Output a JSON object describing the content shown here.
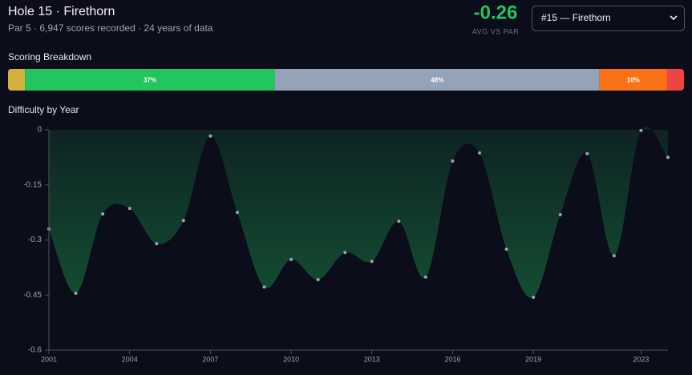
{
  "header": {
    "title": "Hole 15 · Firethorn",
    "subtitle": "Par 5 · 6,947 scores recorded · 24 years of data",
    "stat": {
      "value": -0.26,
      "label": "AVG VS PAR",
      "color": "#22c55e"
    },
    "select": "#15 — Firethorn"
  },
  "chart_data": [
    {
      "type": "stacked-bar",
      "title": "Scoring Breakdown",
      "values": [
        2.5,
        37,
        48,
        10,
        2.5
      ],
      "value_labels": [
        null,
        "37%",
        "48%",
        "10%",
        null
      ],
      "colors": [
        "#d4b13f",
        "#22c55e",
        "#94a3b8",
        "#f97316",
        "#ef4444"
      ]
    },
    {
      "type": "area",
      "title": "Difficulty by Year",
      "x": [
        2001,
        2002,
        2003,
        2004,
        2005,
        2006,
        2007,
        2008,
        2009,
        2010,
        2011,
        2012,
        2013,
        2014,
        2015,
        2016,
        2017,
        2018,
        2019,
        2020,
        2021,
        2022,
        2023,
        2024
      ],
      "series": [
        {
          "color": "#22c55e",
          "values": [
            -0.27,
            -0.445,
            -0.229,
            -0.214,
            -0.31,
            -0.247,
            -0.017,
            -0.225,
            -0.428,
            -0.353,
            -0.408,
            -0.334,
            -0.358,
            -0.249,
            -0.401,
            -0.085,
            -0.063,
            -0.325,
            -0.456,
            -0.231,
            -0.065,
            -0.343,
            -0.002,
            -0.075
          ]
        }
      ],
      "xlim": [
        2001,
        2024
      ],
      "xticks": [
        2001,
        2004,
        2007,
        2010,
        2013,
        2016,
        2019,
        2023
      ],
      "ylim": [
        -0.6,
        0
      ],
      "yticks": [
        0,
        -0.15,
        -0.3,
        -0.45,
        -0.6
      ]
    }
  ]
}
